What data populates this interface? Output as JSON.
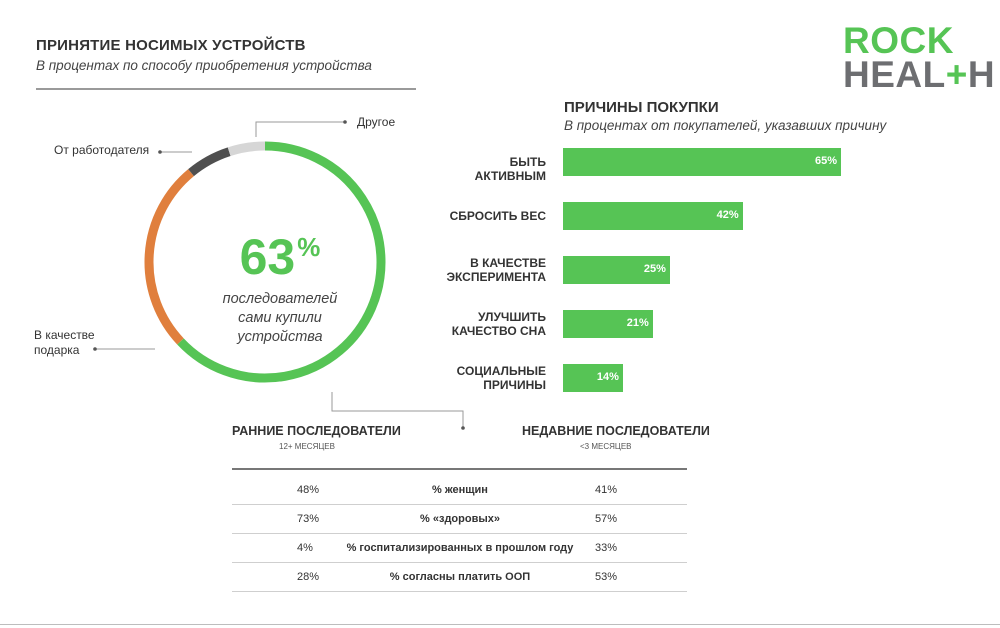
{
  "header": {
    "title": "ПРИНЯТИЕ НОСИМЫХ УСТРОЙСТВ",
    "subtitle": "В процентах по способу приобретения устройства"
  },
  "logo": {
    "line1": "ROCK",
    "line2a": "HEAL",
    "line2b": "+",
    "line2c": "H"
  },
  "donut": {
    "big_number": "63",
    "big_unit": "%",
    "caption": [
      "последователей",
      "сами купили",
      "устройства"
    ],
    "labels": {
      "other": "Другое",
      "employer": "От работодателя",
      "gift": "В качестве подарка"
    },
    "colors": {
      "self": "#56c455",
      "gift": "#e07f3d",
      "employer": "#4f4f4f",
      "other": "#d6d6d6"
    }
  },
  "chart_data": [
    {
      "type": "pie",
      "labels": [
        "Сами купили",
        "В качестве подарка",
        "От работодателя",
        "Другое"
      ],
      "values": [
        63,
        26,
        6,
        5
      ]
    },
    {
      "type": "bar",
      "title": "ПРИЧИНЫ ПОКУПКИ",
      "subtitle": "В процентах от покупателей, указавших причину",
      "categories": [
        "БЫТЬ АКТИВНЫМ",
        "СБРОСИТЬ ВЕС",
        "В КАЧЕСТВЕ ЭКСПЕРИМЕНТА",
        "УЛУЧШИТЬ КАЧЕСТВО СНА",
        "СОЦИАЛЬНЫЕ ПРИЧИНЫ"
      ],
      "category_lines": [
        [
          "БЫТЬ АКТИВНЫМ"
        ],
        [
          "СБРОСИТЬ ВЕС"
        ],
        [
          "В КАЧЕСТВЕ",
          "ЭКСПЕРИМЕНТА"
        ],
        [
          "УЛУЧШИТЬ",
          "КАЧЕСТВО СНА"
        ],
        [
          "СОЦИАЛЬНЫЕ",
          "ПРИЧИНЫ"
        ]
      ],
      "values": [
        65,
        42,
        25,
        21,
        14
      ],
      "value_labels": [
        "65%",
        "42%",
        "25%",
        "21%",
        "14%"
      ],
      "color": "#56c455"
    },
    {
      "type": "table",
      "columns": [
        "РАННИЕ ПОСЛЕДОВАТЕЛИ",
        "",
        "НЕДАВНИЕ ПОСЛЕДОВАТЕЛИ"
      ],
      "column_subs": [
        "12+ МЕСЯЦЕВ",
        "",
        "<3 МЕСЯЦЕВ"
      ],
      "rows": [
        [
          "48%",
          "% женщин",
          "41%"
        ],
        [
          "73%",
          "% «здоровых»",
          "57%"
        ],
        [
          "4%",
          "% госпитализированных в прошлом году",
          "33%"
        ],
        [
          "28%",
          "% согласны платить ООП",
          "53%"
        ]
      ]
    }
  ]
}
